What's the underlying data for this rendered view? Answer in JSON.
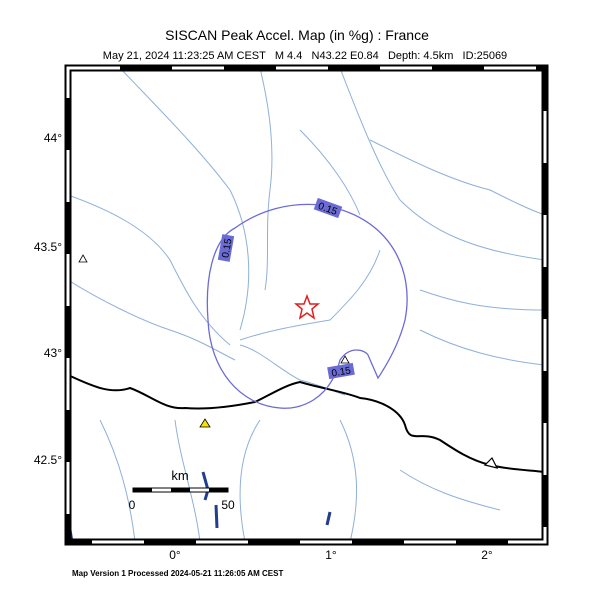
{
  "header": {
    "title": "SISCAN Peak Accel. Map (in %g) : France",
    "subtitle": "May 21, 2024 11:23:25 AM CEST   M 4.4   N43.22 E0.84   Depth: 4.5km   ID:25069"
  },
  "latitude_labels": [
    "44°",
    "43.5°",
    "43°",
    "42.5°"
  ],
  "longitude_labels": [
    "0°",
    "1°",
    "2°"
  ],
  "contour_labels": [
    "0.15",
    "0.15",
    "0.15"
  ],
  "scale": {
    "unit": "km",
    "start": "0",
    "end": "50"
  },
  "footer": "Map Version 1 Processed 2024-05-21 11:26:05 AM CEST"
}
